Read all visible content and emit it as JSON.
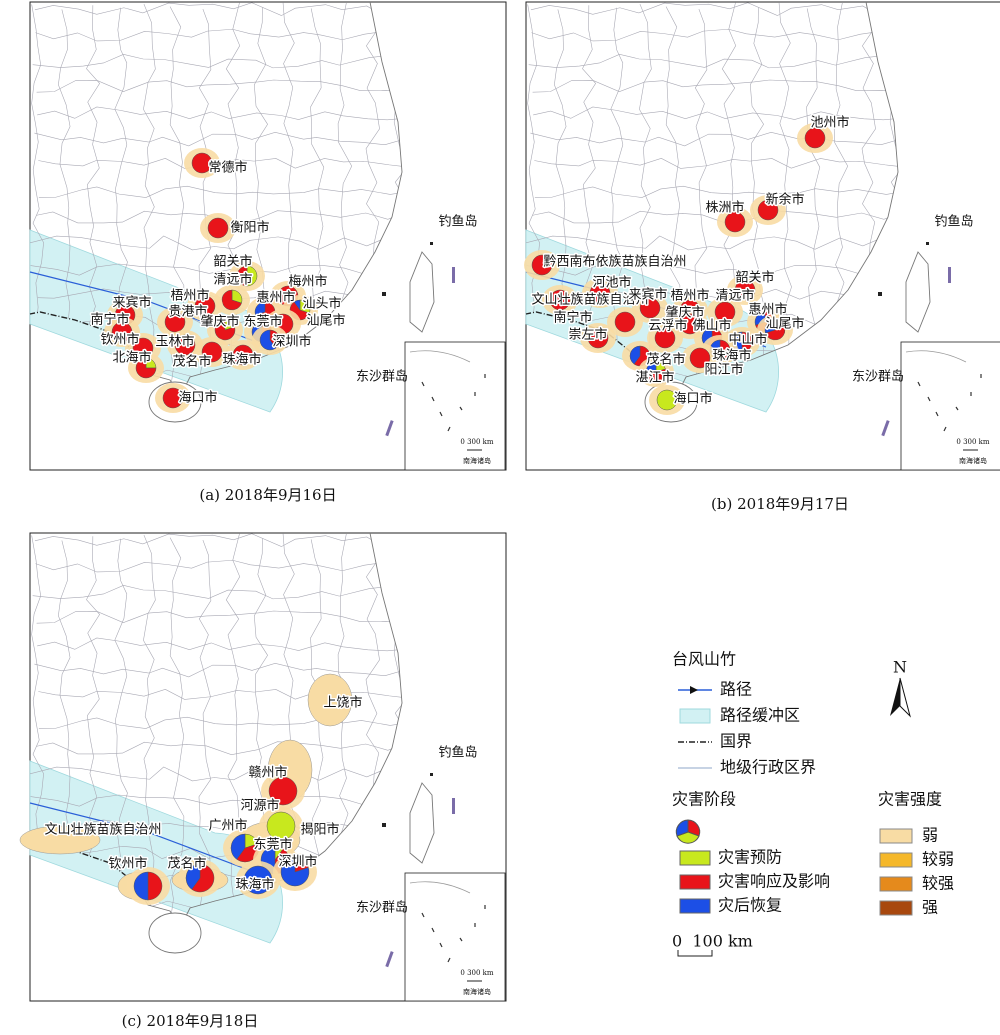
{
  "panels": [
    {
      "caption": "(a) 2018年9月16日",
      "places": [
        "钓鱼岛",
        "东沙群岛"
      ],
      "inset_scale": "0 300 km",
      "inset_label": "南海诸岛",
      "cities": [
        {
          "label": "常德市",
          "shares": [
            0,
            100,
            0
          ]
        },
        {
          "label": "衡阳市",
          "shares": [
            0,
            100,
            0
          ]
        },
        {
          "label": "韶关市",
          "shares": [
            50,
            50,
            0
          ]
        },
        {
          "label": "清远市",
          "shares": [
            30,
            70,
            0
          ]
        },
        {
          "label": "梅州市",
          "shares": [
            0,
            100,
            0
          ]
        },
        {
          "label": "惠州市",
          "shares": [
            0,
            70,
            30
          ]
        },
        {
          "label": "汕头市",
          "shares": [
            30,
            60,
            10
          ]
        },
        {
          "label": "汕尾市",
          "shares": [
            0,
            100,
            0
          ]
        },
        {
          "label": "梧州市",
          "shares": [
            0,
            100,
            0
          ]
        },
        {
          "label": "来宾市",
          "shares": [
            0,
            100,
            0
          ]
        },
        {
          "label": "贵港市",
          "shares": [
            0,
            100,
            0
          ]
        },
        {
          "label": "肇庆市",
          "shares": [
            20,
            80,
            0
          ]
        },
        {
          "label": "东莞市",
          "shares": [
            0,
            50,
            50
          ]
        },
        {
          "label": "南宁市",
          "shares": [
            0,
            100,
            0
          ]
        },
        {
          "label": "玉林市",
          "shares": [
            0,
            100,
            0
          ]
        },
        {
          "label": "深圳市",
          "shares": [
            0,
            40,
            60
          ]
        },
        {
          "label": "钦州市",
          "shares": [
            0,
            100,
            0
          ]
        },
        {
          "label": "北海市",
          "shares": [
            25,
            75,
            0
          ]
        },
        {
          "label": "茂名市",
          "shares": [
            0,
            100,
            0
          ]
        },
        {
          "label": "珠海市",
          "shares": [
            0,
            100,
            0
          ]
        },
        {
          "label": "海口市",
          "shares": [
            0,
            100,
            0
          ]
        }
      ]
    },
    {
      "caption": "(b) 2018年9月17日",
      "places": [
        "钓鱼岛",
        "东沙群岛"
      ],
      "inset_scale": "0 300 km",
      "inset_label": "南海诸岛",
      "cities": [
        {
          "label": "池州市",
          "shares": [
            0,
            100,
            0
          ]
        },
        {
          "label": "新余市",
          "shares": [
            0,
            100,
            0
          ]
        },
        {
          "label": "株洲市",
          "shares": [
            0,
            100,
            0
          ]
        },
        {
          "label": "黔西南布依族苗族自治州",
          "shares": [
            0,
            100,
            0
          ]
        },
        {
          "label": "河池市",
          "shares": [
            0,
            100,
            0
          ]
        },
        {
          "label": "韶关市",
          "shares": [
            0,
            100,
            0
          ]
        },
        {
          "label": "文山壮族苗族自治州",
          "shares": [
            0,
            100,
            0
          ]
        },
        {
          "label": "来宾市",
          "shares": [
            0,
            100,
            0
          ]
        },
        {
          "label": "梧州市",
          "shares": [
            0,
            100,
            0
          ]
        },
        {
          "label": "清远市",
          "shares": [
            0,
            100,
            0
          ]
        },
        {
          "label": "南宁市",
          "shares": [
            0,
            100,
            0
          ]
        },
        {
          "label": "肇庆市",
          "shares": [
            0,
            100,
            0
          ]
        },
        {
          "label": "惠州市",
          "shares": [
            0,
            70,
            30
          ]
        },
        {
          "label": "崇左市",
          "shares": [
            0,
            100,
            0
          ]
        },
        {
          "label": "云浮市",
          "shares": [
            0,
            100,
            0
          ]
        },
        {
          "label": "佛山市",
          "shares": [
            0,
            60,
            40
          ]
        },
        {
          "label": "中山市",
          "shares": [
            0,
            50,
            50
          ]
        },
        {
          "label": "汕尾市",
          "shares": [
            0,
            70,
            30
          ]
        },
        {
          "label": "茂名市",
          "shares": [
            0,
            60,
            40
          ]
        },
        {
          "label": "珠海市",
          "shares": [
            0,
            50,
            50
          ]
        },
        {
          "label": "湛江市",
          "shares": [
            20,
            50,
            30
          ]
        },
        {
          "label": "阳江市",
          "shares": [
            0,
            100,
            0
          ]
        },
        {
          "label": "海口市",
          "shares": [
            100,
            0,
            0
          ]
        }
      ]
    },
    {
      "caption": "(c) 2018年9月18日",
      "places": [
        "钓鱼岛",
        "东沙群岛"
      ],
      "inset_scale": "0 300 km",
      "inset_label": "南海诸岛",
      "cities": [
        {
          "label": "上饶市"
        },
        {
          "label": "赣州市",
          "shares": [
            0,
            100,
            0
          ]
        },
        {
          "label": "河源市",
          "shares": [
            100,
            0,
            0
          ]
        },
        {
          "label": "文山壮族苗族自治州"
        },
        {
          "label": "广州市",
          "shares": [
            20,
            40,
            40
          ]
        },
        {
          "label": "揭阳市"
        },
        {
          "label": "东莞市",
          "shares": [
            10,
            40,
            50
          ]
        },
        {
          "label": "深圳市",
          "shares": [
            0,
            20,
            80
          ]
        },
        {
          "label": "钦州市",
          "shares": [
            0,
            50,
            50
          ]
        },
        {
          "label": "茂名市",
          "shares": [
            0,
            60,
            40
          ]
        },
        {
          "label": "珠海市",
          "shares": [
            0,
            0,
            100
          ]
        }
      ]
    }
  ],
  "legend": {
    "title": "台风山竹",
    "lines": [
      "路径",
      "路径缓冲区",
      "国界",
      "地级行政区界"
    ],
    "stage_title": "灾害阶段",
    "stages": [
      {
        "label": "灾害预防",
        "color": "#c8e81e"
      },
      {
        "label": "灾害响应及影响",
        "color": "#e8141a"
      },
      {
        "label": "灾后恢复",
        "color": "#1c4fe6"
      }
    ],
    "intensity_title": "灾害强度",
    "intensities": [
      {
        "label": "弱",
        "color": "#f8dca4"
      },
      {
        "label": "较弱",
        "color": "#f5b82a"
      },
      {
        "label": "较强",
        "color": "#e58a1c"
      },
      {
        "label": "强",
        "color": "#a8480e"
      }
    ],
    "scale": "0  100 km",
    "north": "N"
  }
}
